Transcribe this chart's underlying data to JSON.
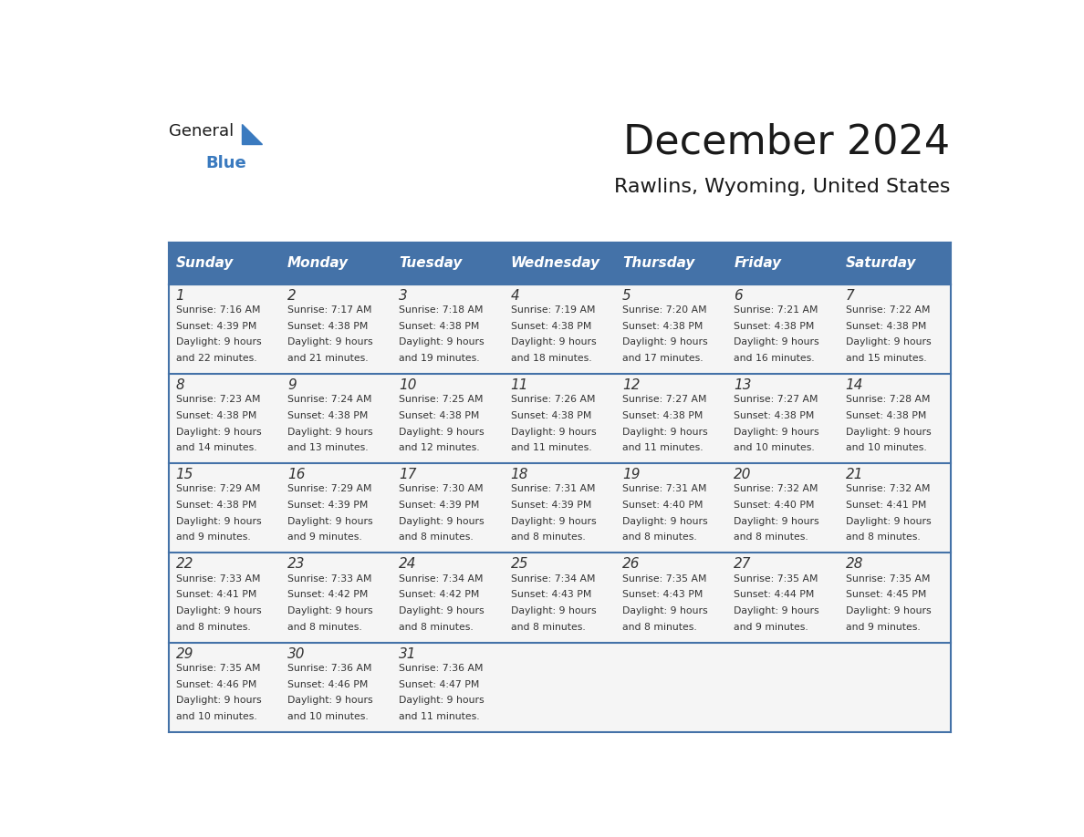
{
  "title": "December 2024",
  "subtitle": "Rawlins, Wyoming, United States",
  "header_bg_color": "#4472A8",
  "header_text_color": "#FFFFFF",
  "days_of_week": [
    "Sunday",
    "Monday",
    "Tuesday",
    "Wednesday",
    "Thursday",
    "Friday",
    "Saturday"
  ],
  "row_bg": "#F5F5F5",
  "cell_text_color": "#333333",
  "grid_line_color": "#4472A8",
  "title_color": "#1a1a1a",
  "subtitle_color": "#1a1a1a",
  "calendar": [
    [
      {
        "day": 1,
        "sunrise": "7:16 AM",
        "sunset": "4:39 PM",
        "daylight": "9 hours and 22 minutes"
      },
      {
        "day": 2,
        "sunrise": "7:17 AM",
        "sunset": "4:38 PM",
        "daylight": "9 hours and 21 minutes"
      },
      {
        "day": 3,
        "sunrise": "7:18 AM",
        "sunset": "4:38 PM",
        "daylight": "9 hours and 19 minutes"
      },
      {
        "day": 4,
        "sunrise": "7:19 AM",
        "sunset": "4:38 PM",
        "daylight": "9 hours and 18 minutes"
      },
      {
        "day": 5,
        "sunrise": "7:20 AM",
        "sunset": "4:38 PM",
        "daylight": "9 hours and 17 minutes"
      },
      {
        "day": 6,
        "sunrise": "7:21 AM",
        "sunset": "4:38 PM",
        "daylight": "9 hours and 16 minutes"
      },
      {
        "day": 7,
        "sunrise": "7:22 AM",
        "sunset": "4:38 PM",
        "daylight": "9 hours and 15 minutes"
      }
    ],
    [
      {
        "day": 8,
        "sunrise": "7:23 AM",
        "sunset": "4:38 PM",
        "daylight": "9 hours and 14 minutes"
      },
      {
        "day": 9,
        "sunrise": "7:24 AM",
        "sunset": "4:38 PM",
        "daylight": "9 hours and 13 minutes"
      },
      {
        "day": 10,
        "sunrise": "7:25 AM",
        "sunset": "4:38 PM",
        "daylight": "9 hours and 12 minutes"
      },
      {
        "day": 11,
        "sunrise": "7:26 AM",
        "sunset": "4:38 PM",
        "daylight": "9 hours and 11 minutes"
      },
      {
        "day": 12,
        "sunrise": "7:27 AM",
        "sunset": "4:38 PM",
        "daylight": "9 hours and 11 minutes"
      },
      {
        "day": 13,
        "sunrise": "7:27 AM",
        "sunset": "4:38 PM",
        "daylight": "9 hours and 10 minutes"
      },
      {
        "day": 14,
        "sunrise": "7:28 AM",
        "sunset": "4:38 PM",
        "daylight": "9 hours and 10 minutes"
      }
    ],
    [
      {
        "day": 15,
        "sunrise": "7:29 AM",
        "sunset": "4:38 PM",
        "daylight": "9 hours and 9 minutes"
      },
      {
        "day": 16,
        "sunrise": "7:29 AM",
        "sunset": "4:39 PM",
        "daylight": "9 hours and 9 minutes"
      },
      {
        "day": 17,
        "sunrise": "7:30 AM",
        "sunset": "4:39 PM",
        "daylight": "9 hours and 8 minutes"
      },
      {
        "day": 18,
        "sunrise": "7:31 AM",
        "sunset": "4:39 PM",
        "daylight": "9 hours and 8 minutes"
      },
      {
        "day": 19,
        "sunrise": "7:31 AM",
        "sunset": "4:40 PM",
        "daylight": "9 hours and 8 minutes"
      },
      {
        "day": 20,
        "sunrise": "7:32 AM",
        "sunset": "4:40 PM",
        "daylight": "9 hours and 8 minutes"
      },
      {
        "day": 21,
        "sunrise": "7:32 AM",
        "sunset": "4:41 PM",
        "daylight": "9 hours and 8 minutes"
      }
    ],
    [
      {
        "day": 22,
        "sunrise": "7:33 AM",
        "sunset": "4:41 PM",
        "daylight": "9 hours and 8 minutes"
      },
      {
        "day": 23,
        "sunrise": "7:33 AM",
        "sunset": "4:42 PM",
        "daylight": "9 hours and 8 minutes"
      },
      {
        "day": 24,
        "sunrise": "7:34 AM",
        "sunset": "4:42 PM",
        "daylight": "9 hours and 8 minutes"
      },
      {
        "day": 25,
        "sunrise": "7:34 AM",
        "sunset": "4:43 PM",
        "daylight": "9 hours and 8 minutes"
      },
      {
        "day": 26,
        "sunrise": "7:35 AM",
        "sunset": "4:43 PM",
        "daylight": "9 hours and 8 minutes"
      },
      {
        "day": 27,
        "sunrise": "7:35 AM",
        "sunset": "4:44 PM",
        "daylight": "9 hours and 9 minutes"
      },
      {
        "day": 28,
        "sunrise": "7:35 AM",
        "sunset": "4:45 PM",
        "daylight": "9 hours and 9 minutes"
      }
    ],
    [
      {
        "day": 29,
        "sunrise": "7:35 AM",
        "sunset": "4:46 PM",
        "daylight": "9 hours and 10 minutes"
      },
      {
        "day": 30,
        "sunrise": "7:36 AM",
        "sunset": "4:46 PM",
        "daylight": "9 hours and 10 minutes"
      },
      {
        "day": 31,
        "sunrise": "7:36 AM",
        "sunset": "4:47 PM",
        "daylight": "9 hours and 11 minutes"
      },
      null,
      null,
      null,
      null
    ]
  ]
}
